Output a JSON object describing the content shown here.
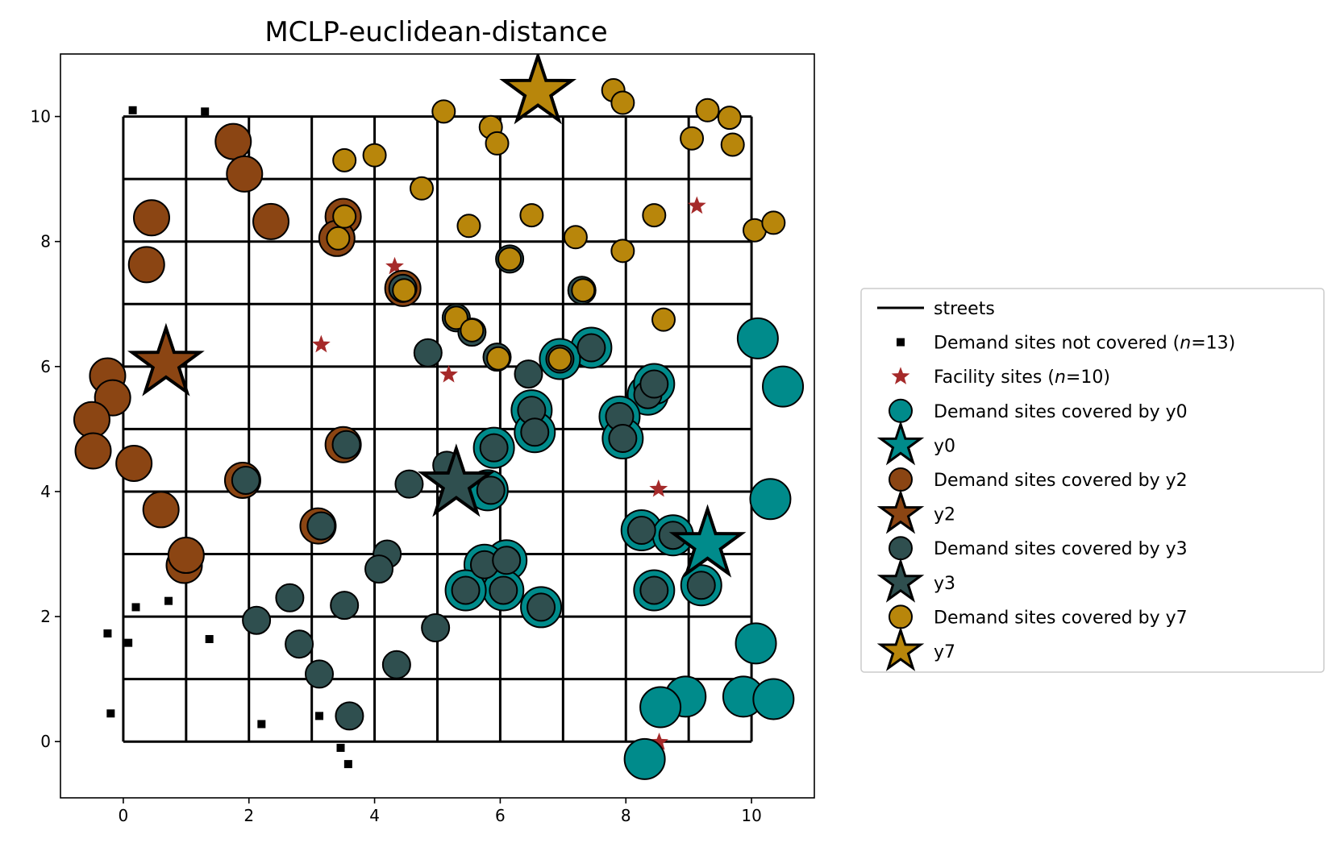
{
  "chart_data": {
    "type": "scatter",
    "title": "MCLP-euclidean-distance",
    "xlim": [
      -1.0,
      11.0
    ],
    "ylim": [
      -0.9,
      11.0
    ],
    "x_ticks": [
      0,
      2,
      4,
      6,
      8,
      10
    ],
    "y_ticks": [
      0,
      2,
      4,
      6,
      8,
      10
    ],
    "x_tick_labels": [
      "0",
      "2",
      "4",
      "6",
      "8",
      "10"
    ],
    "y_tick_labels": [
      "0",
      "2",
      "4",
      "6",
      "8",
      "10"
    ],
    "grid": false,
    "streets": {
      "min": 0,
      "max": 10,
      "step": 1,
      "color": "#000000"
    },
    "legend_position": "right",
    "legend": [
      {
        "label": "streets",
        "marker": "line",
        "color": "#000000"
      },
      {
        "label": "Demand sites not covered (",
        "label_italic": "n",
        "label_tail": "=13)",
        "marker": "square",
        "color": "#000000"
      },
      {
        "label": "Facility sites (",
        "label_italic": "n",
        "label_tail": "=10)",
        "marker": "small-star",
        "color": "#a52a2a"
      },
      {
        "label": "Demand sites covered by y0",
        "marker": "circle",
        "color": "#008b8b"
      },
      {
        "label": "y0",
        "marker": "star",
        "color": "#008b8b"
      },
      {
        "label": "Demand sites covered by y2",
        "marker": "circle",
        "color": "#8b4513"
      },
      {
        "label": "y2",
        "marker": "star",
        "color": "#8b4513"
      },
      {
        "label": "Demand sites covered by y3",
        "marker": "circle",
        "color": "#2f4f4f"
      },
      {
        "label": "y3",
        "marker": "star",
        "color": "#2f4f4f"
      },
      {
        "label": "Demand sites covered by y7",
        "marker": "circle",
        "color": "#b8860b"
      },
      {
        "label": "y7",
        "marker": "star",
        "color": "#b8860b"
      }
    ],
    "uncovered_demand": [
      [
        0.15,
        10.1
      ],
      [
        1.3,
        10.08
      ],
      [
        0.2,
        2.15
      ],
      [
        0.72,
        2.25
      ],
      [
        -0.25,
        1.73
      ],
      [
        0.08,
        1.58
      ],
      [
        1.37,
        1.64
      ],
      [
        -0.2,
        0.45
      ],
      [
        2.2,
        0.28
      ],
      [
        3.12,
        0.41
      ],
      [
        3.46,
        -0.1
      ],
      [
        3.58,
        -0.36
      ],
      [
        0.7,
        6.05
      ]
    ],
    "facility_sites": [
      [
        9.13,
        8.57
      ],
      [
        4.32,
        7.6
      ],
      [
        3.15,
        6.35
      ],
      [
        5.18,
        5.87
      ],
      [
        8.52,
        4.04
      ],
      [
        8.53,
        -0.01
      ],
      [
        0.68,
        6.05
      ],
      [
        5.3,
        4.12
      ],
      [
        9.3,
        3.15
      ],
      [
        6.6,
        10.4
      ]
    ],
    "series": [
      {
        "name": "Demand sites covered by y0",
        "color": "#008b8b",
        "points": [
          [
            10.1,
            6.45
          ],
          [
            10.5,
            5.68
          ],
          [
            10.3,
            3.88
          ],
          [
            10.07,
            1.57
          ],
          [
            9.87,
            0.72
          ],
          [
            10.35,
            0.68
          ],
          [
            8.95,
            0.72
          ],
          [
            8.55,
            0.55
          ],
          [
            8.3,
            -0.28
          ],
          [
            7.45,
            6.3
          ],
          [
            6.95,
            6.12
          ],
          [
            6.5,
            5.3
          ],
          [
            6.55,
            4.95
          ],
          [
            5.9,
            4.7
          ],
          [
            5.8,
            4.02
          ],
          [
            6.1,
            2.9
          ],
          [
            5.75,
            2.83
          ],
          [
            6.05,
            2.42
          ],
          [
            5.45,
            2.42
          ],
          [
            6.65,
            2.15
          ],
          [
            8.35,
            5.55
          ],
          [
            8.45,
            5.72
          ],
          [
            7.9,
            5.2
          ],
          [
            7.95,
            4.85
          ],
          [
            8.25,
            3.38
          ],
          [
            8.75,
            3.3
          ],
          [
            8.45,
            2.42
          ],
          [
            9.2,
            2.5
          ]
        ]
      },
      {
        "name": "Demand sites covered by y2",
        "color": "#8b4513",
        "points": [
          [
            1.75,
            9.6
          ],
          [
            1.93,
            9.08
          ],
          [
            0.45,
            8.38
          ],
          [
            2.35,
            8.32
          ],
          [
            0.37,
            7.63
          ],
          [
            -0.25,
            5.85
          ],
          [
            -0.17,
            5.5
          ],
          [
            -0.5,
            5.15
          ],
          [
            -0.48,
            4.65
          ],
          [
            0.17,
            4.45
          ],
          [
            0.6,
            3.71
          ],
          [
            0.97,
            2.82
          ],
          [
            1.0,
            2.98
          ],
          [
            1.9,
            4.18
          ],
          [
            3.1,
            3.45
          ],
          [
            3.5,
            4.75
          ],
          [
            3.5,
            8.4
          ],
          [
            3.4,
            8.05
          ],
          [
            4.45,
            7.25
          ]
        ]
      },
      {
        "name": "Demand sites covered by y3",
        "color": "#2f4f4f",
        "points": [
          [
            6.15,
            7.72
          ],
          [
            7.3,
            7.22
          ],
          [
            5.3,
            6.78
          ],
          [
            5.55,
            6.55
          ],
          [
            5.95,
            6.15
          ],
          [
            4.85,
            6.22
          ],
          [
            6.45,
            5.88
          ],
          [
            6.5,
            5.3
          ],
          [
            6.55,
            4.95
          ],
          [
            5.15,
            4.42
          ],
          [
            4.55,
            4.12
          ],
          [
            5.85,
            4.02
          ],
          [
            5.9,
            4.7
          ],
          [
            1.95,
            4.18
          ],
          [
            3.15,
            3.45
          ],
          [
            3.55,
            4.75
          ],
          [
            4.2,
            3.0
          ],
          [
            4.07,
            2.76
          ],
          [
            2.65,
            2.3
          ],
          [
            3.52,
            2.18
          ],
          [
            2.12,
            1.94
          ],
          [
            2.8,
            1.56
          ],
          [
            3.12,
            1.08
          ],
          [
            4.97,
            1.82
          ],
          [
            4.35,
            1.23
          ],
          [
            3.6,
            0.41
          ],
          [
            5.75,
            2.83
          ],
          [
            6.1,
            2.9
          ],
          [
            6.05,
            2.42
          ],
          [
            5.45,
            2.42
          ],
          [
            6.65,
            2.15
          ],
          [
            8.35,
            5.55
          ],
          [
            8.45,
            5.72
          ],
          [
            7.9,
            5.2
          ],
          [
            7.95,
            4.85
          ],
          [
            8.25,
            3.38
          ],
          [
            8.75,
            3.3
          ],
          [
            8.45,
            2.42
          ],
          [
            9.2,
            2.5
          ],
          [
            7.45,
            6.3
          ],
          [
            6.95,
            6.12
          ],
          [
            4.45,
            7.25
          ]
        ]
      },
      {
        "name": "Demand sites covered by y7",
        "color": "#b8860b",
        "points": [
          [
            7.8,
            10.42
          ],
          [
            7.95,
            10.22
          ],
          [
            5.1,
            10.08
          ],
          [
            9.3,
            10.1
          ],
          [
            9.65,
            9.98
          ],
          [
            5.85,
            9.83
          ],
          [
            5.95,
            9.57
          ],
          [
            9.05,
            9.65
          ],
          [
            9.7,
            9.55
          ],
          [
            3.52,
            9.3
          ],
          [
            4.0,
            9.38
          ],
          [
            4.75,
            8.85
          ],
          [
            3.52,
            8.4
          ],
          [
            3.42,
            8.05
          ],
          [
            5.5,
            8.25
          ],
          [
            6.5,
            8.42
          ],
          [
            8.45,
            8.42
          ],
          [
            7.2,
            8.07
          ],
          [
            10.05,
            8.18
          ],
          [
            10.35,
            8.3
          ],
          [
            7.95,
            7.85
          ],
          [
            6.15,
            7.72
          ],
          [
            7.32,
            7.22
          ],
          [
            4.47,
            7.22
          ],
          [
            5.3,
            6.78
          ],
          [
            5.55,
            6.58
          ],
          [
            8.6,
            6.75
          ],
          [
            5.97,
            6.13
          ],
          [
            6.95,
            6.12
          ]
        ]
      }
    ],
    "selected_facilities": [
      {
        "name": "y0",
        "x": 9.3,
        "y": 3.15,
        "color": "#008b8b"
      },
      {
        "name": "y2",
        "x": 0.68,
        "y": 6.05,
        "color": "#8b4513"
      },
      {
        "name": "y3",
        "x": 5.3,
        "y": 4.12,
        "color": "#2f4f4f"
      },
      {
        "name": "y7",
        "x": 6.6,
        "y": 10.4,
        "color": "#b8860b"
      }
    ]
  }
}
